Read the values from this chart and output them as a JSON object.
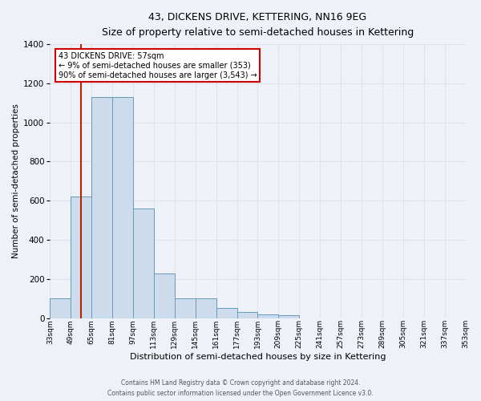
{
  "title": "43, DICKENS DRIVE, KETTERING, NN16 9EG",
  "subtitle": "Size of property relative to semi-detached houses in Kettering",
  "xlabel": "Distribution of semi-detached houses by size in Kettering",
  "ylabel": "Number of semi-detached properties",
  "bar_values": [
    100,
    620,
    1130,
    1130,
    560,
    230,
    100,
    100,
    50,
    30,
    20,
    15,
    0,
    0,
    0,
    0,
    0,
    0,
    0,
    0
  ],
  "bin_edges": [
    33,
    49,
    65,
    81,
    97,
    113,
    129,
    145,
    161,
    177,
    193,
    209,
    225,
    241,
    257,
    273,
    289,
    305,
    321,
    337,
    353
  ],
  "bin_labels": [
    "33sqm",
    "49sqm",
    "65sqm",
    "81sqm",
    "97sqm",
    "113sqm",
    "129sqm",
    "145sqm",
    "161sqm",
    "177sqm",
    "193sqm",
    "209sqm",
    "225sqm",
    "241sqm",
    "257sqm",
    "273sqm",
    "289sqm",
    "305sqm",
    "321sqm",
    "337sqm",
    "353sqm"
  ],
  "bar_color": "#ccdcec",
  "bar_edge_color": "#6699bb",
  "property_line_x": 57,
  "property_line_color": "#bb2200",
  "ylim": [
    0,
    1400
  ],
  "yticks": [
    0,
    200,
    400,
    600,
    800,
    1000,
    1200,
    1400
  ],
  "annotation_title": "43 DICKENS DRIVE: 57sqm",
  "annotation_line1": "← 9% of semi-detached houses are smaller (353)",
  "annotation_line2": "90% of semi-detached houses are larger (3,543) →",
  "annotation_box_color": "#ffffff",
  "annotation_box_edge_color": "#cc0000",
  "background_color": "#eef2f8",
  "grid_color": "#dde4ef",
  "footer_line1": "Contains HM Land Registry data © Crown copyright and database right 2024.",
  "footer_line2": "Contains public sector information licensed under the Open Government Licence v3.0."
}
